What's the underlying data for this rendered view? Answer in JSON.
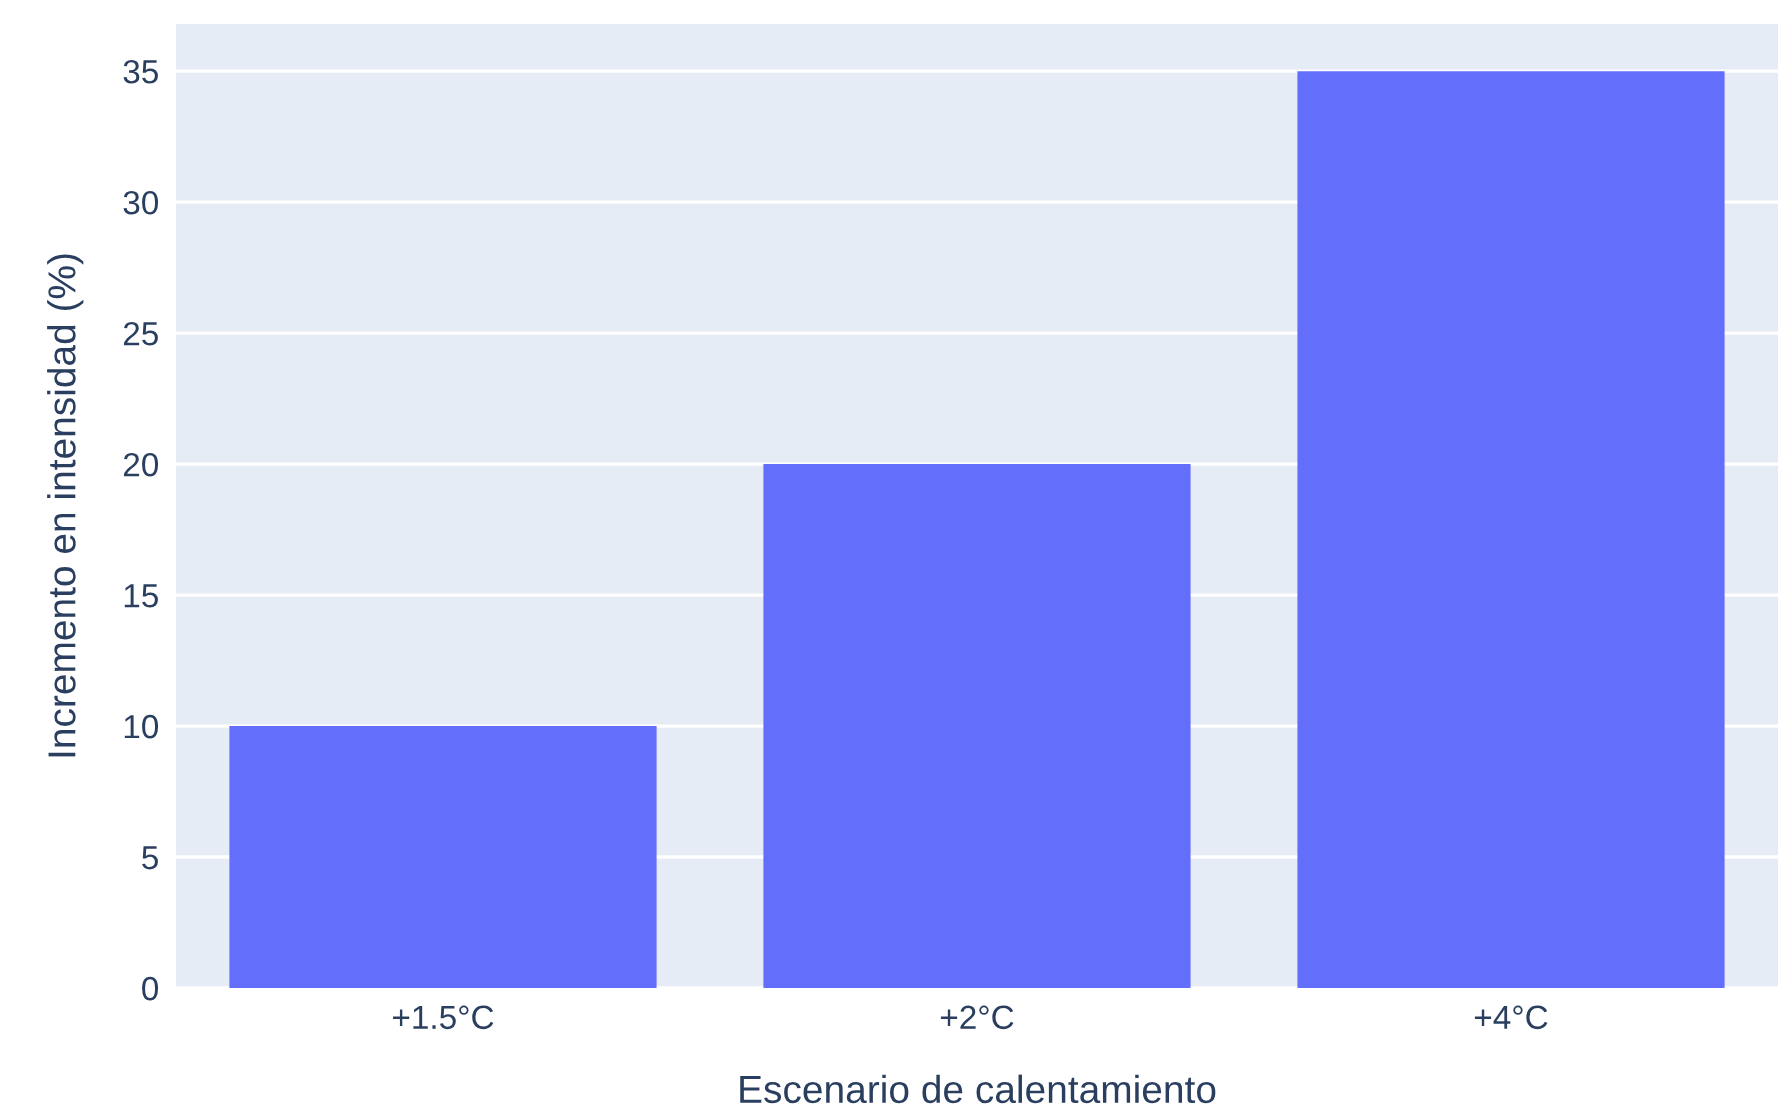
{
  "chart_data": {
    "type": "bar",
    "xlabel": "Escenario de calentamiento",
    "ylabel": "Incremento en intensidad (%)",
    "categories": [
      "+1.5°C",
      "+2°C",
      "+4°C"
    ],
    "values": [
      10,
      20,
      35
    ],
    "color": "#636efa",
    "ylim": [
      0,
      36.8
    ],
    "yticks": [
      0,
      5,
      10,
      15,
      20,
      25,
      30,
      35
    ],
    "grid": "y"
  }
}
